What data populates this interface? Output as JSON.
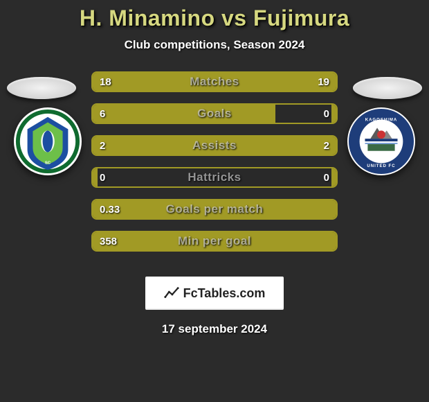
{
  "title": "H. Minamino vs Fujimura",
  "subtitle": "Club competitions, Season 2024",
  "date": "17 september 2024",
  "logo_text": "FcTables.com",
  "colors": {
    "accent": "#a19a25",
    "left_bar": "#a19a25",
    "right_bar": "#a19a25",
    "border": "#a19a25"
  },
  "badge_left": {
    "ring_color": "#0f6b2f",
    "inner_color": "#1c4fa1",
    "accent_color": "#7bd23a"
  },
  "badge_right": {
    "ring_color": "#1e3d7a",
    "inner_color": "#ffffff",
    "ball_color": "#c33",
    "text": "KAGOSHIMA UNITED FC"
  },
  "rows": [
    {
      "label": "Matches",
      "left_val": "18",
      "right_val": "19",
      "left_pct": 48,
      "right_pct": 52
    },
    {
      "label": "Goals",
      "left_val": "6",
      "right_val": "0",
      "left_pct": 75,
      "right_pct": 2
    },
    {
      "label": "Assists",
      "left_val": "2",
      "right_val": "2",
      "left_pct": 50,
      "right_pct": 50
    },
    {
      "label": "Hattricks",
      "left_val": "0",
      "right_val": "0",
      "left_pct": 2,
      "right_pct": 2
    },
    {
      "label": "Goals per match",
      "left_val": "0.33",
      "right_val": "",
      "left_pct": 100,
      "right_pct": 0
    },
    {
      "label": "Min per goal",
      "left_val": "358",
      "right_val": "",
      "left_pct": 100,
      "right_pct": 0
    }
  ]
}
